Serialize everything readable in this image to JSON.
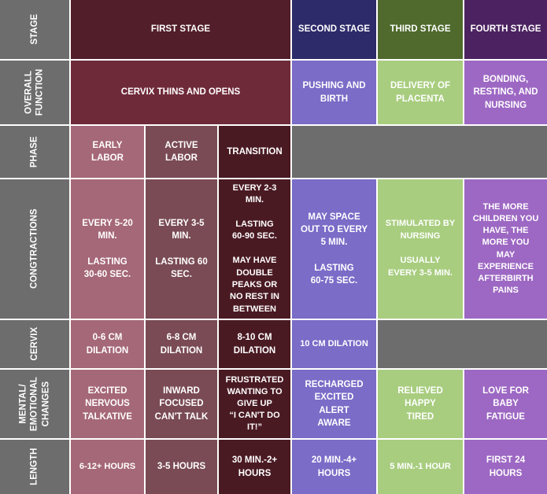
{
  "row_headers": {
    "stage": "STAGE",
    "overall_function": "OVERALL FUNCTION",
    "phase": "PHASE",
    "contractions": "CONGTRACTIONS",
    "cervix": "CERVIX",
    "mental": "MENTAL/ EMOTIONAL CHANGES",
    "length": "LENGTH"
  },
  "stages": {
    "first": "FIRST STAGE",
    "second": "SECOND STAGE",
    "third": "THIRD STAGE",
    "fourth": "FOURTH STAGE"
  },
  "overall_function": {
    "first": "CERVIX THINS AND OPENS",
    "second": "PUSHING AND\nBIRTH",
    "third": "DELIVERY OF\nPLACENTA",
    "fourth": "BONDING,\nRESTING, AND\nNURSING"
  },
  "phases": {
    "early": "EARLY\nLABOR",
    "active": "ACTIVE\nLABOR",
    "transition": "TRANSITION"
  },
  "contractions": {
    "early": "EVERY 5-20\nMIN.\n\nLASTING\n30-60 SEC.",
    "active": "EVERY 3-5\nMIN.\n\nLASTING 60\nSEC.",
    "transition": "EVERY 2-3\nMIN.\n\nLASTING\n60-90 SEC.\n\nMAY HAVE\nDOUBLE\nPEAKS OR\nNO REST IN\nBETWEEN",
    "second": "MAY SPACE\nOUT TO EVERY\n5 MIN.\n\nLASTING\n60-75 SEC.",
    "third": "STIMULATED BY\nNURSING\n\nUSUALLY\nEVERY 3-5 MIN.",
    "fourth": "THE MORE\nCHILDREN YOU\nHAVE, THE\nMORE YOU\nMAY\nEXPERIENCE\nAFTERBIRTH\nPAINS"
  },
  "cervix": {
    "early": "0-6 CM\nDILATION",
    "active": "6-8 CM\nDILATION",
    "transition": "8-10 CM\nDILATION",
    "second": "10 CM DILATION"
  },
  "mental": {
    "early": "EXCITED\nNERVOUS\nTALKATIVE",
    "active": "INWARD\nFOCUSED\nCAN'T TALK",
    "transition": "FRUSTRATED\nWANTING TO\nGIVE UP\n“I CAN'T DO\nIT!”",
    "second": "RECHARGED\nEXCITED\nALERT\nAWARE",
    "third": "RELIEVED\nHAPPY\nTIRED",
    "fourth": "LOVE FOR\nBABY\nFATIGUE"
  },
  "length": {
    "early": "6-12+ HOURS",
    "active": "3-5 HOURS",
    "transition": "30 MIN.-2+\nHOURS",
    "second": "20 MIN.-4+\nHOURS",
    "third": "5 MIN.-1 HOUR",
    "fourth": "FIRST 24\nHOURS"
  },
  "colors": {
    "row_header": "#6e6d6d",
    "first_stage_header": "#521e2a",
    "first_stage_function": "#6f2a3a",
    "second_stage_header": "#2d2b6a",
    "third_stage_header": "#4f6a2c",
    "fourth_stage_header": "#4c2360",
    "early_labor": "#a56878",
    "active_labor": "#7a4b55",
    "transition": "#4a1a23",
    "second_stage_body": "#7a6cc7",
    "third_stage_body": "#a8cd7f",
    "fourth_stage_body": "#9d68c3"
  }
}
